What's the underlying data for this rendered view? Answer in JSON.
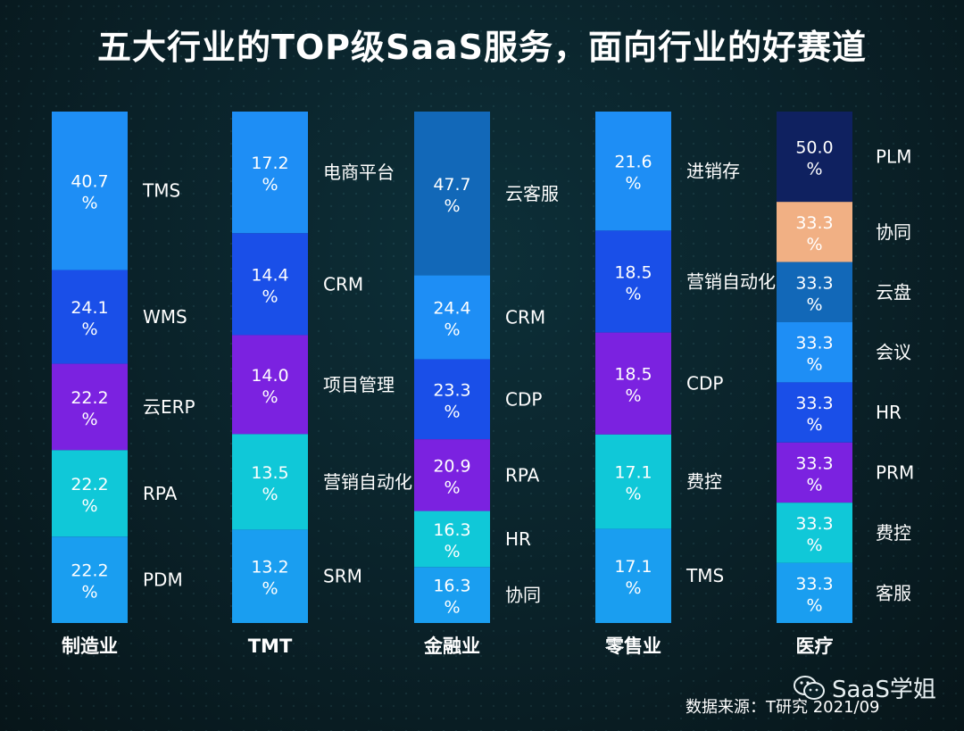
{
  "title": "五大行业的TOP级SaaS服务，面向行业的好赛道",
  "source": "数据来源：T研究 2021/09",
  "watermark": "SaaS学姐",
  "chart_data": {
    "type": "bar",
    "stacked": true,
    "categories": [
      "制造业",
      "TMT",
      "金融业",
      "零售业",
      "医疗"
    ],
    "groups": [
      {
        "category": "制造业",
        "segments": [
          {
            "label": "TMS",
            "value": 40.7,
            "text": "40.7\n%",
            "color": "#1e8ef5"
          },
          {
            "label": "WMS",
            "value": 24.1,
            "text": "24.1\n%",
            "color": "#1a4fe8"
          },
          {
            "label": "云ERP",
            "value": 22.2,
            "text": "22.2\n%",
            "color": "#7b22e0"
          },
          {
            "label": "RPA",
            "value": 22.2,
            "text": "22.2\n%",
            "color": "#10c8d8"
          },
          {
            "label": "PDM",
            "value": 22.2,
            "text": "22.2\n%",
            "color": "#1a9ef0"
          }
        ]
      },
      {
        "category": "TMT",
        "segments": [
          {
            "label": "电商平台",
            "value": 17.2,
            "text": "17.2\n%",
            "color": "#1e8ef5"
          },
          {
            "label": "CRM",
            "value": 14.4,
            "text": "14.4\n%",
            "color": "#1a4fe8"
          },
          {
            "label": "项目管理",
            "value": 14.0,
            "text": "14.0\n%",
            "color": "#7b22e0"
          },
          {
            "label": "营销自动化",
            "value": 13.5,
            "text": "13.5\n%",
            "color": "#10c8d8"
          },
          {
            "label": "SRM",
            "value": 13.2,
            "text": "13.2\n%",
            "color": "#1a9ef0"
          }
        ]
      },
      {
        "category": "金融业",
        "segments": [
          {
            "label": "云客服",
            "value": 47.7,
            "text": "47.7\n%",
            "color": "#1268b8"
          },
          {
            "label": "CRM",
            "value": 24.4,
            "text": "24.4\n%",
            "color": "#1e8ef5"
          },
          {
            "label": "CDP",
            "value": 23.3,
            "text": "23.3\n%",
            "color": "#1a4fe8"
          },
          {
            "label": "RPA",
            "value": 20.9,
            "text": "20.9\n%",
            "color": "#7b22e0"
          },
          {
            "label": "HR",
            "value": 16.3,
            "text": "16.3\n%",
            "color": "#10c8d8"
          },
          {
            "label": "协同",
            "value": 16.3,
            "text": "16.3\n%",
            "color": "#1a9ef0"
          }
        ]
      },
      {
        "category": "零售业",
        "segments": [
          {
            "label": "进销存",
            "value": 21.6,
            "text": "21.6\n%",
            "color": "#1e8ef5"
          },
          {
            "label": "营销自动化",
            "value": 18.5,
            "text": "18.5\n%",
            "color": "#1a4fe8"
          },
          {
            "label": "CDP",
            "value": 18.5,
            "text": "18.5\n%",
            "color": "#7b22e0"
          },
          {
            "label": "费控",
            "value": 17.1,
            "text": "17.1\n%",
            "color": "#10c8d8"
          },
          {
            "label": "TMS",
            "value": 17.1,
            "text": "17.1\n%",
            "color": "#1a9ef0"
          }
        ]
      },
      {
        "category": "医疗",
        "segments": [
          {
            "label": "PLM",
            "value": 50.0,
            "text": "50.0\n%",
            "color": "#0f2160"
          },
          {
            "label": "协同",
            "value": 33.3,
            "text": "33.3\n%",
            "color": "#f1b084"
          },
          {
            "label": "云盘",
            "value": 33.3,
            "text": "33.3\n%",
            "color": "#1268b8"
          },
          {
            "label": "会议",
            "value": 33.3,
            "text": "33.3\n%",
            "color": "#1e8ef5"
          },
          {
            "label": "HR",
            "value": 33.3,
            "text": "33.3\n%",
            "color": "#1a4fe8"
          },
          {
            "label": "PRM",
            "value": 33.3,
            "text": "33.3\n%",
            "color": "#7b22e0"
          },
          {
            "label": "费控",
            "value": 33.3,
            "text": "33.3\n%",
            "color": "#10c8d8"
          },
          {
            "label": "客服",
            "value": 33.3,
            "text": "33.3\n%",
            "color": "#1a9ef0"
          }
        ]
      }
    ],
    "legend": "none",
    "grid": false,
    "title": "",
    "xlabel": "",
    "ylabel": ""
  },
  "colors": {
    "background": "#0a2128",
    "text": "#ffffff"
  }
}
